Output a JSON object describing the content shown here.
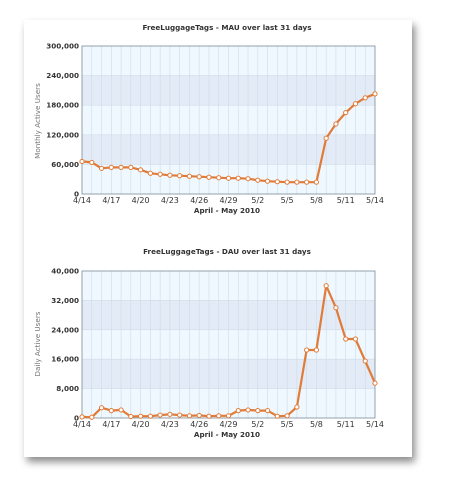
{
  "chart_data": [
    {
      "type": "line",
      "title": "FreeLuggageTags - MAU over last 31 days",
      "xlabel": "April - May 2010",
      "ylabel": "Monthly Active Users",
      "x_tick_labels": [
        "4/14",
        "4/17",
        "4/20",
        "4/23",
        "4/26",
        "4/29",
        "5/2",
        "5/5",
        "5/8",
        "5/11",
        "5/14"
      ],
      "y_tick_labels": [
        "0",
        "60,000",
        "120,000",
        "180,000",
        "240,000",
        "300,000"
      ],
      "ylim": [
        0,
        300000
      ],
      "x": [
        "4/14",
        "4/15",
        "4/16",
        "4/17",
        "4/18",
        "4/19",
        "4/20",
        "4/21",
        "4/22",
        "4/23",
        "4/24",
        "4/25",
        "4/26",
        "4/27",
        "4/28",
        "4/29",
        "4/30",
        "5/1",
        "5/2",
        "5/3",
        "5/4",
        "5/5",
        "5/6",
        "5/7",
        "5/8",
        "5/9",
        "5/10",
        "5/11",
        "5/12",
        "5/13",
        "5/14"
      ],
      "series": [
        {
          "values": [
            66000,
            64000,
            52000,
            54000,
            54000,
            54000,
            49000,
            42000,
            40000,
            38000,
            37000,
            36000,
            35000,
            34000,
            33000,
            32000,
            32000,
            31000,
            28000,
            26000,
            25000,
            24000,
            24000,
            24000,
            24000,
            113000,
            142000,
            165000,
            183000,
            195000,
            203000
          ]
        }
      ],
      "grid": true,
      "colors": {
        "line": "#e07b39",
        "marker_fill": "#ffffff",
        "band_dark": "#e3ebf6",
        "band_light": "#f0f8ff",
        "grid": "#cddbe8"
      }
    },
    {
      "type": "line",
      "title": "FreeLuggageTags - DAU over last 31 days",
      "xlabel": "April - May 2010",
      "ylabel": "Daily Active Users",
      "x_tick_labels": [
        "4/14",
        "4/17",
        "4/20",
        "4/23",
        "4/26",
        "4/29",
        "5/2",
        "5/5",
        "5/8",
        "5/11",
        "5/14"
      ],
      "y_tick_labels": [
        "0",
        "8,000",
        "16,000",
        "24,000",
        "32,000",
        "40,000"
      ],
      "ylim": [
        0,
        40000
      ],
      "x": [
        "4/14",
        "4/15",
        "4/16",
        "4/17",
        "4/18",
        "4/19",
        "4/20",
        "4/21",
        "4/22",
        "4/23",
        "4/24",
        "4/25",
        "4/26",
        "4/27",
        "4/28",
        "4/29",
        "4/30",
        "5/1",
        "5/2",
        "5/3",
        "5/4",
        "5/5",
        "5/6",
        "5/7",
        "5/8",
        "5/9",
        "5/10",
        "5/11",
        "5/12",
        "5/13",
        "5/14"
      ],
      "series": [
        {
          "values": [
            300,
            200,
            2800,
            2000,
            2200,
            400,
            500,
            500,
            800,
            1000,
            800,
            600,
            700,
            500,
            600,
            600,
            2000,
            2200,
            2000,
            2000,
            500,
            600,
            3000,
            18500,
            18500,
            36000,
            30000,
            21500,
            21500,
            15500,
            9500
          ]
        }
      ],
      "grid": true,
      "colors": {
        "line": "#e07b39",
        "marker_fill": "#ffffff",
        "band_dark": "#e3ebf6",
        "band_light": "#f0f8ff",
        "grid": "#cddbe8"
      }
    }
  ]
}
